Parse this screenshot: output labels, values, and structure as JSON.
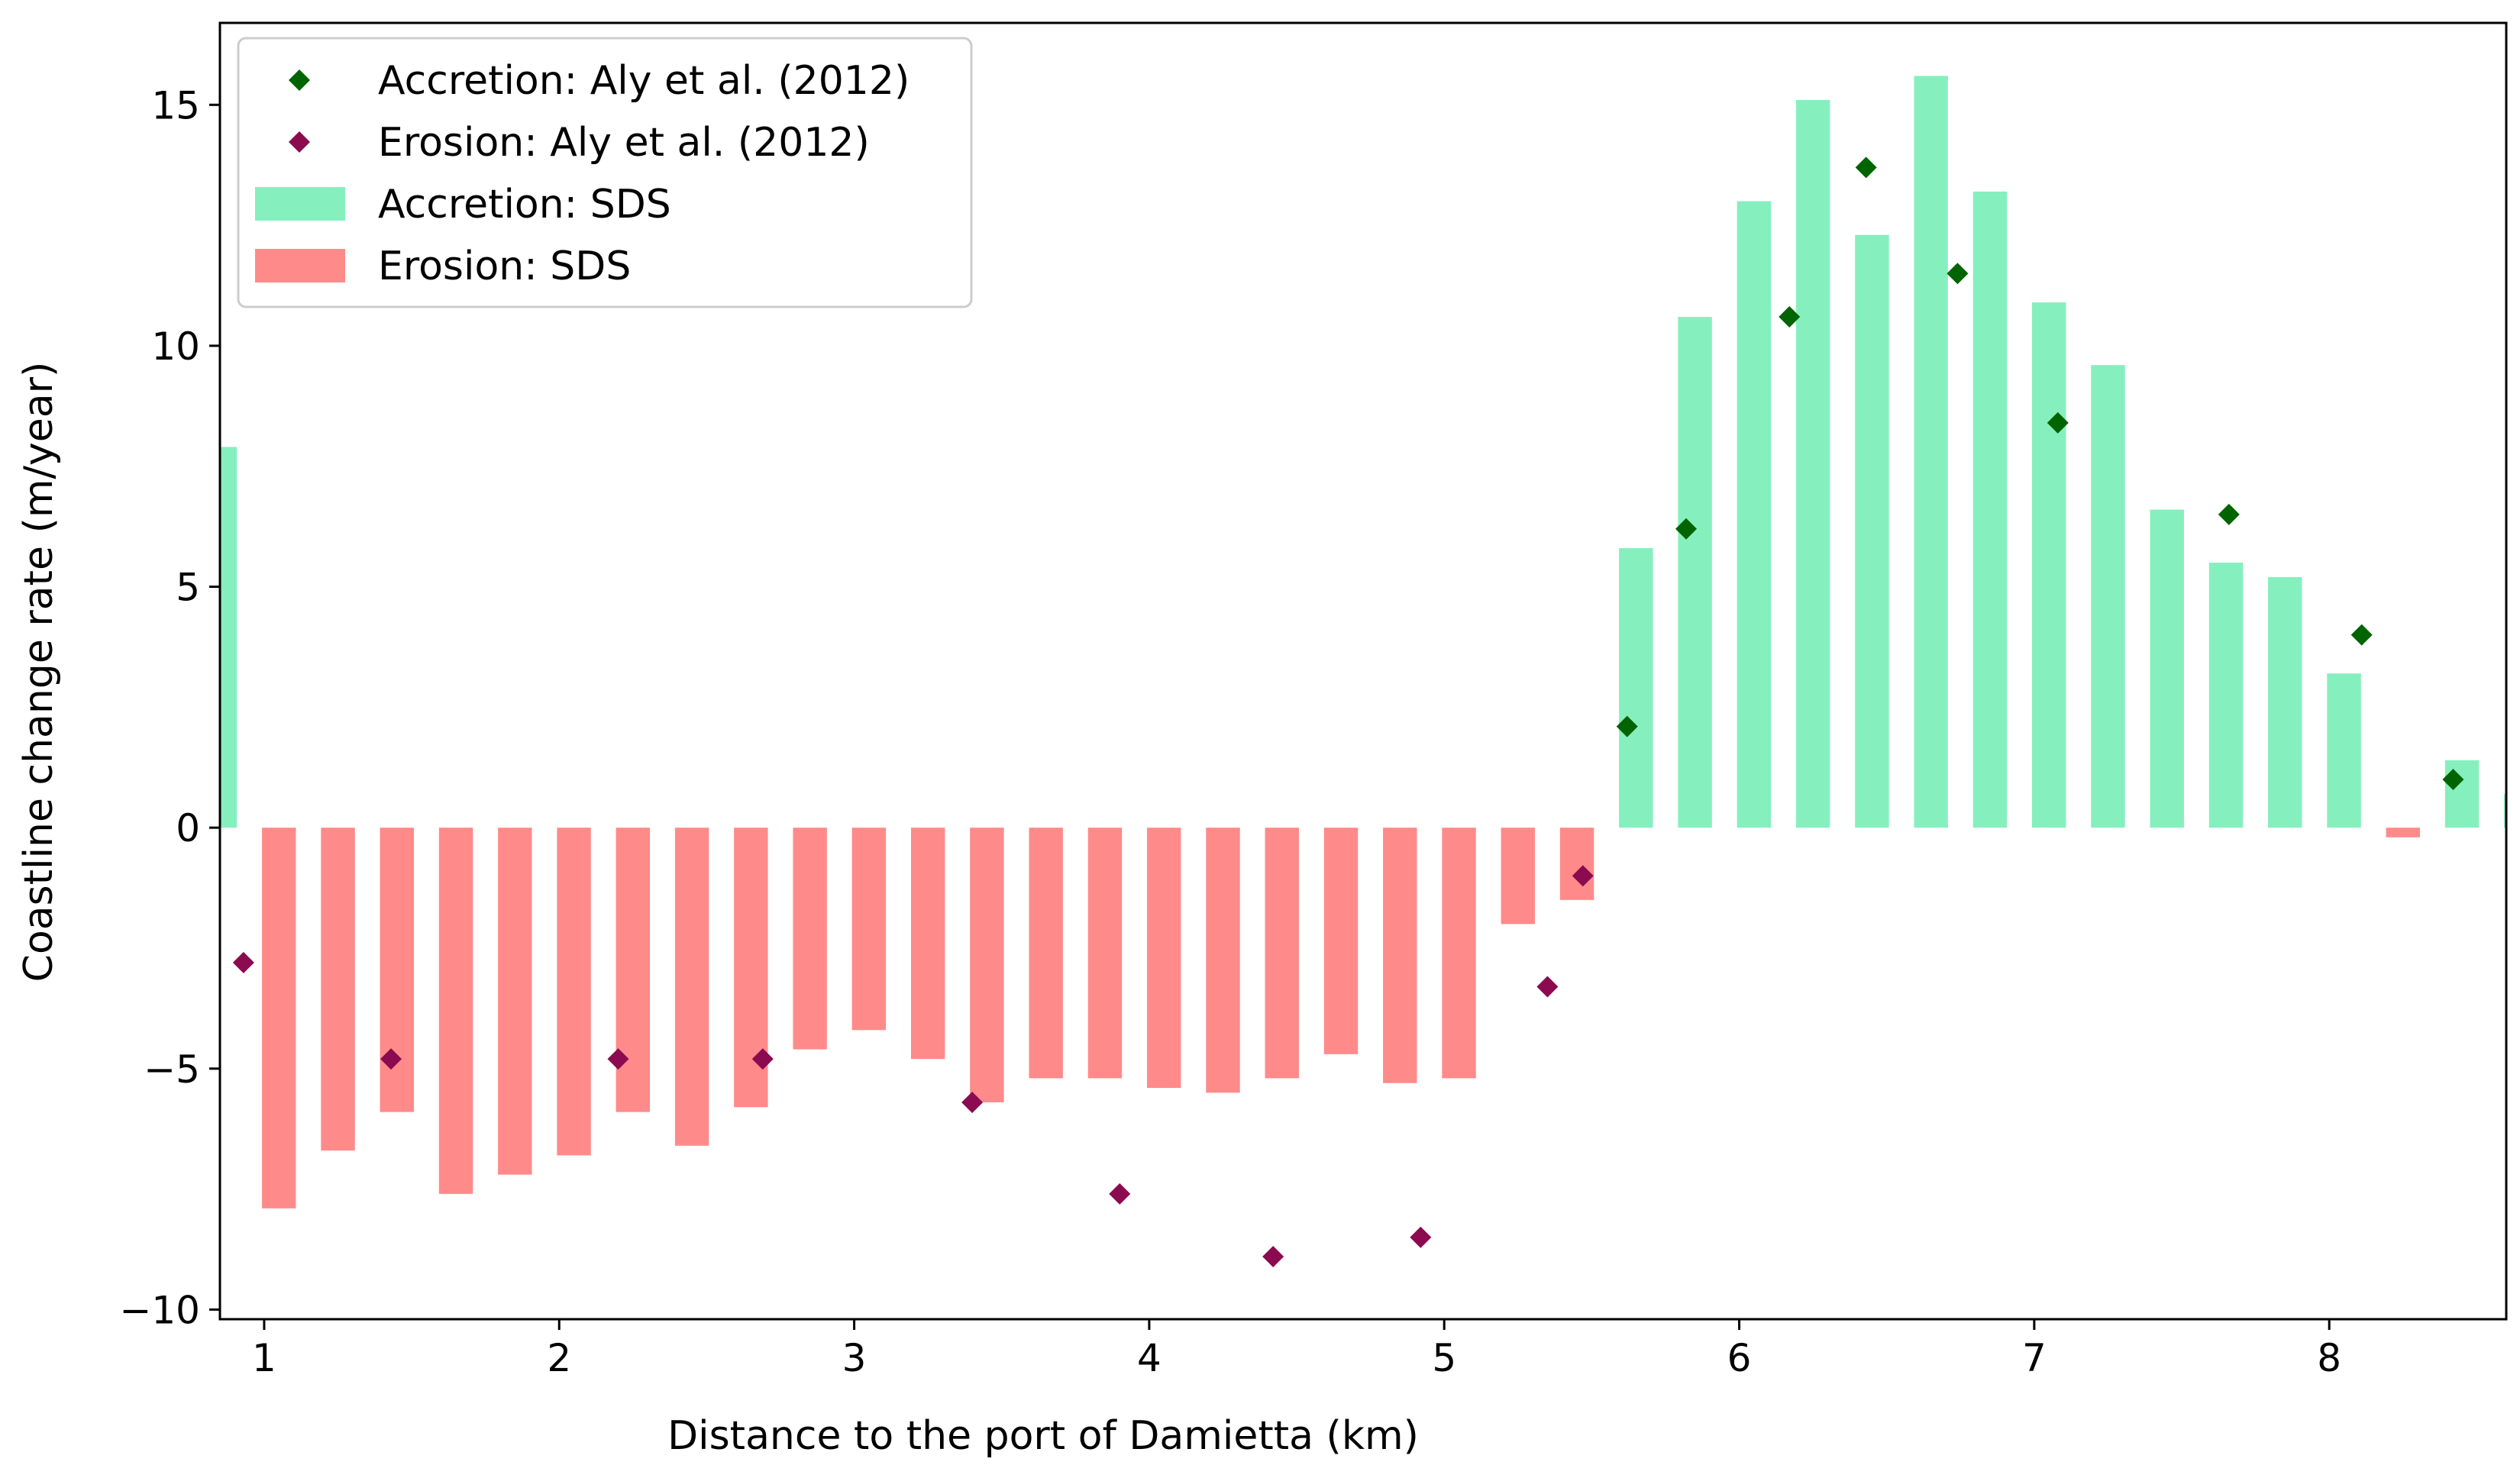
{
  "chart_data": {
    "type": "bar",
    "title": "",
    "xlabel": "Distance to the port of Damietta (km)",
    "ylabel": "Coastline change rate (m/year)",
    "xlim": [
      0.85,
      8.6
    ],
    "ylim": [
      -10.2,
      16.7
    ],
    "xticks": [
      1,
      2,
      3,
      4,
      5,
      6,
      7,
      8
    ],
    "yticks": [
      -10,
      -5,
      0,
      5,
      10,
      15
    ],
    "xtick_labels": [
      "1",
      "2",
      "3",
      "4",
      "5",
      "6",
      "7",
      "8"
    ],
    "ytick_labels": [
      "−10",
      "−5",
      "0",
      "5",
      "10",
      "15"
    ],
    "bar_width_km": 0.115,
    "legend": {
      "position": "top-left",
      "entries": [
        {
          "key": "acc_pts",
          "label": "Accretion: Aly et al. (2012)",
          "marker": "diamond",
          "color": "#006400"
        },
        {
          "key": "ero_pts",
          "label": "Erosion: Aly et al. (2012)",
          "marker": "diamond",
          "color": "#8B0A50"
        },
        {
          "key": "acc_bars",
          "label": "Accretion: SDS",
          "marker": "rect",
          "color": "#86EFBE"
        },
        {
          "key": "ero_bars",
          "label": "Erosion: SDS",
          "marker": "rect",
          "color": "#FF8A8A"
        }
      ]
    },
    "colors": {
      "accretion_bar": "#86EFBE",
      "erosion_bar": "#FF8A8A",
      "accretion_point": "#006400",
      "erosion_point": "#8B0A50"
    },
    "bars": {
      "x": [
        0.85,
        1.05,
        1.25,
        1.45,
        1.65,
        1.85,
        2.05,
        2.25,
        2.45,
        2.65,
        2.85,
        3.05,
        3.25,
        3.45,
        3.65,
        3.85,
        4.05,
        4.25,
        4.45,
        4.65,
        4.85,
        5.05,
        5.25,
        5.45,
        5.65,
        5.85,
        6.05,
        6.25,
        6.45,
        6.65,
        6.85,
        7.05,
        7.25,
        7.45,
        7.65,
        7.85,
        8.05,
        8.25,
        8.45,
        8.65
      ],
      "values": [
        7.9,
        -7.9,
        -6.7,
        -5.9,
        -7.6,
        -7.2,
        -6.8,
        -5.9,
        -6.6,
        -5.8,
        -4.6,
        -4.2,
        -4.8,
        -5.7,
        -5.2,
        -5.2,
        -5.4,
        -5.5,
        -5.2,
        -4.7,
        -5.3,
        -5.2,
        -2.0,
        -1.5,
        5.8,
        10.6,
        13.0,
        15.1,
        12.3,
        15.6,
        13.2,
        10.9,
        9.6,
        6.6,
        5.5,
        5.2,
        3.2,
        -0.2,
        1.4,
        0.7
      ]
    },
    "series": [
      {
        "name": "Accretion: Aly et al. (2012)",
        "type": "scatter",
        "x": [
          5.62,
          5.82,
          6.17,
          6.43,
          6.74,
          7.08,
          7.66,
          8.11,
          8.42
        ],
        "y": [
          2.1,
          6.2,
          10.6,
          13.7,
          11.5,
          8.4,
          6.5,
          4.0,
          1.0
        ]
      },
      {
        "name": "Erosion: Aly et al. (2012)",
        "type": "scatter",
        "x": [
          0.93,
          1.43,
          2.2,
          2.69,
          3.4,
          3.9,
          4.42,
          4.92,
          5.35,
          5.47
        ],
        "y": [
          -2.8,
          -4.8,
          -4.8,
          -4.8,
          -5.7,
          -7.6,
          -8.9,
          -8.5,
          -3.3,
          -1.0
        ]
      }
    ]
  }
}
